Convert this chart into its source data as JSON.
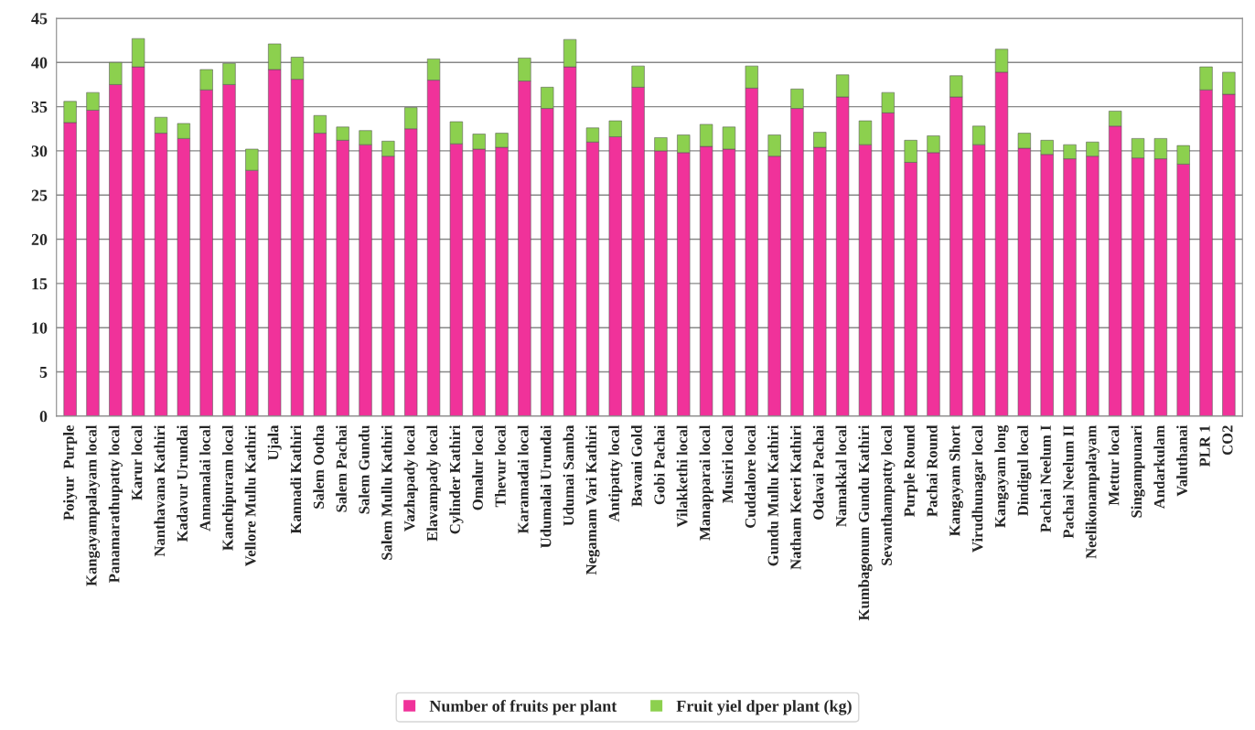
{
  "chart_data": {
    "type": "bar",
    "stacked": true,
    "categories": [
      "Poiyur  Purple",
      "Kangayampalayam local",
      "Panamarathupatty local",
      "Karur local",
      "Nanthavana Kathiri",
      "Kadavur Urundai",
      "Annamalai local",
      "Kanchipuram local",
      "Vellore Mullu Kathiri",
      "Ujala",
      "Kannadi Kathiri",
      "Salem Ootha",
      "Salem Pachai",
      "Salem Gundu",
      "Salem Mullu Kathiri",
      "Vazhapady local",
      "Elavampady local",
      "Cylinder Kathiri",
      "Omalur local",
      "Thevur local",
      "Karamadai local",
      "Udumalai Urundai",
      "Udumai Samba",
      "Negamam Vari Kathiri",
      "Antipatty local",
      "Bavani Gold",
      "Gobi Pachai",
      "Vilakkethi local",
      "Manapparai local",
      "Musiri local",
      "Cuddalore local",
      "Gundu Mullu Kathiri",
      "Natham Keeri Kathiri",
      "Odavai Pachai",
      "Namakkal local",
      "Kumbagonum Gundu Kathiri",
      "Sevanthampatty local",
      "Purple Round",
      "Pachai Round",
      "Kangayam Short",
      "Virudhunagar local",
      "Kangayam long",
      "Dindigul local",
      "Pachai Neelum I",
      "Pachai Neelum II",
      "Neelikonampalayam",
      "Mettur local",
      "Singampunari",
      "Andarkulam",
      "Valuthanai",
      "PLR 1",
      "CO2"
    ],
    "series": [
      {
        "name": "Number of fruits per plant",
        "color": "#f0329a",
        "values": [
          33.2,
          34.6,
          37.5,
          39.5,
          32.0,
          31.4,
          36.9,
          37.5,
          27.8,
          39.2,
          38.1,
          32.0,
          31.2,
          30.7,
          29.4,
          32.5,
          38.0,
          30.8,
          30.2,
          30.4,
          37.9,
          34.8,
          39.5,
          31.0,
          31.6,
          37.2,
          30.0,
          29.8,
          30.5,
          30.2,
          37.1,
          29.4,
          34.8,
          30.4,
          36.1,
          30.7,
          34.3,
          28.7,
          29.8,
          36.1,
          30.7,
          38.9,
          30.3,
          29.6,
          29.1,
          29.4,
          32.8,
          29.2,
          29.1,
          28.5,
          36.9,
          36.4
        ]
      },
      {
        "name": "Fruit yiel dper plant (kg)",
        "color": "#8cd04e",
        "values": [
          2.4,
          2.0,
          2.5,
          3.2,
          1.8,
          1.7,
          2.3,
          2.4,
          2.4,
          2.9,
          2.5,
          2.0,
          1.5,
          1.6,
          1.7,
          2.4,
          2.4,
          2.5,
          1.7,
          1.6,
          2.6,
          2.4,
          3.1,
          1.6,
          1.8,
          2.4,
          1.5,
          2.0,
          2.5,
          2.5,
          2.5,
          2.4,
          2.2,
          1.7,
          2.5,
          2.7,
          2.3,
          2.5,
          1.9,
          2.4,
          2.1,
          2.6,
          1.7,
          1.6,
          1.6,
          1.6,
          1.7,
          2.2,
          2.3,
          2.1,
          2.6,
          2.5
        ]
      }
    ],
    "ylim": [
      0,
      45
    ],
    "yticks": [
      0,
      5,
      10,
      15,
      20,
      25,
      30,
      35,
      40,
      45
    ],
    "grid": "y",
    "legend": "bottom"
  }
}
